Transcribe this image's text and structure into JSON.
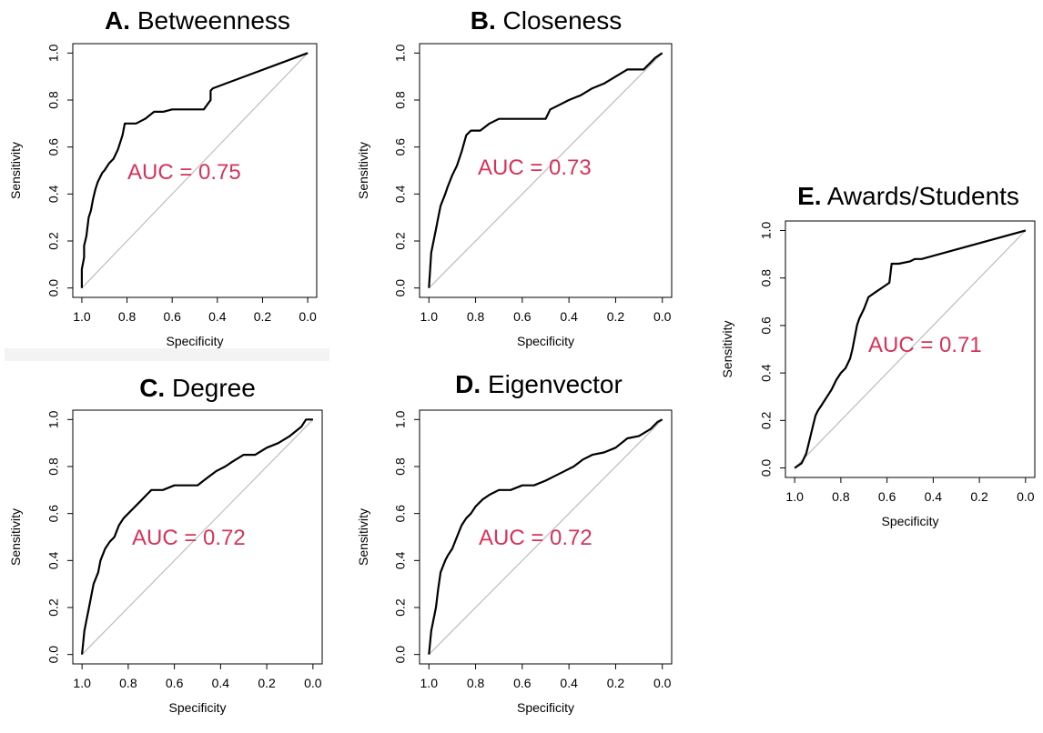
{
  "chart_data": [
    {
      "type": "line",
      "panel_letter": "A.",
      "title": "Betweenness",
      "xlabel": "Specificity",
      "ylabel": "Sensitivity",
      "xlim": [
        1.0,
        0.0
      ],
      "ylim": [
        0.0,
        1.0
      ],
      "x_reversed": true,
      "xticks": [
        "1.0",
        "0.8",
        "0.6",
        "0.4",
        "0.2",
        "0.0"
      ],
      "yticks": [
        "0.0",
        "0.2",
        "0.4",
        "0.6",
        "0.8",
        "1.0"
      ],
      "annotation": "AUC = 0.75",
      "annotation_color": "#d6335a",
      "series": [
        {
          "role": "roc",
          "x": [
            1.0,
            1.0,
            0.99,
            0.99,
            0.98,
            0.97,
            0.96,
            0.95,
            0.94,
            0.93,
            0.91,
            0.9,
            0.88,
            0.86,
            0.84,
            0.82,
            0.81,
            0.79,
            0.76,
            0.72,
            0.68,
            0.64,
            0.6,
            0.55,
            0.5,
            0.46,
            0.43,
            0.43,
            0.42,
            0.0
          ],
          "y": [
            0.0,
            0.08,
            0.13,
            0.18,
            0.22,
            0.3,
            0.33,
            0.38,
            0.42,
            0.45,
            0.49,
            0.5,
            0.53,
            0.55,
            0.59,
            0.65,
            0.7,
            0.7,
            0.7,
            0.72,
            0.75,
            0.75,
            0.76,
            0.76,
            0.76,
            0.76,
            0.8,
            0.84,
            0.85,
            1.0
          ]
        },
        {
          "role": "reference",
          "x": [
            1.0,
            0.0
          ],
          "y": [
            0.0,
            1.0
          ]
        }
      ]
    },
    {
      "type": "line",
      "panel_letter": "B.",
      "title": "Closeness",
      "xlabel": "Specificity",
      "ylabel": "Sensitivity",
      "xlim": [
        1.0,
        0.0
      ],
      "ylim": [
        0.0,
        1.0
      ],
      "x_reversed": true,
      "xticks": [
        "1.0",
        "0.8",
        "0.6",
        "0.4",
        "0.2",
        "0.0"
      ],
      "yticks": [
        "0.0",
        "0.2",
        "0.4",
        "0.6",
        "0.8",
        "1.0"
      ],
      "annotation": "AUC = 0.73",
      "annotation_color": "#d6335a",
      "series": [
        {
          "role": "roc",
          "x": [
            1.0,
            0.99,
            0.98,
            0.97,
            0.96,
            0.95,
            0.93,
            0.92,
            0.9,
            0.88,
            0.86,
            0.84,
            0.82,
            0.78,
            0.74,
            0.7,
            0.65,
            0.6,
            0.55,
            0.5,
            0.48,
            0.44,
            0.4,
            0.35,
            0.3,
            0.25,
            0.2,
            0.15,
            0.08,
            0.05,
            0.03,
            0.0
          ],
          "y": [
            0.0,
            0.15,
            0.2,
            0.25,
            0.3,
            0.35,
            0.4,
            0.43,
            0.48,
            0.52,
            0.58,
            0.65,
            0.67,
            0.67,
            0.7,
            0.72,
            0.72,
            0.72,
            0.72,
            0.72,
            0.76,
            0.78,
            0.8,
            0.82,
            0.85,
            0.87,
            0.9,
            0.93,
            0.93,
            0.96,
            0.98,
            1.0
          ]
        },
        {
          "role": "reference",
          "x": [
            1.0,
            0.0
          ],
          "y": [
            0.0,
            1.0
          ]
        }
      ]
    },
    {
      "type": "line",
      "panel_letter": "C.",
      "title": "Degree",
      "xlabel": "Specificity",
      "ylabel": "Sensitivity",
      "xlim": [
        1.0,
        0.0
      ],
      "ylim": [
        0.0,
        1.0
      ],
      "x_reversed": true,
      "xticks": [
        "1.0",
        "0.8",
        "0.6",
        "0.4",
        "0.2",
        "0.0"
      ],
      "yticks": [
        "0.0",
        "0.2",
        "0.4",
        "0.6",
        "0.8",
        "1.0"
      ],
      "annotation": "AUC = 0.72",
      "annotation_color": "#d6335a",
      "series": [
        {
          "role": "roc",
          "x": [
            1.0,
            0.99,
            0.98,
            0.97,
            0.96,
            0.95,
            0.93,
            0.92,
            0.9,
            0.88,
            0.86,
            0.84,
            0.82,
            0.78,
            0.75,
            0.72,
            0.7,
            0.65,
            0.6,
            0.55,
            0.5,
            0.46,
            0.42,
            0.38,
            0.35,
            0.3,
            0.25,
            0.2,
            0.15,
            0.1,
            0.05,
            0.03,
            0.0
          ],
          "y": [
            0.0,
            0.1,
            0.15,
            0.2,
            0.25,
            0.3,
            0.35,
            0.4,
            0.45,
            0.48,
            0.5,
            0.55,
            0.58,
            0.62,
            0.65,
            0.68,
            0.7,
            0.7,
            0.72,
            0.72,
            0.72,
            0.75,
            0.78,
            0.8,
            0.82,
            0.85,
            0.85,
            0.88,
            0.9,
            0.93,
            0.97,
            1.0,
            1.0
          ]
        },
        {
          "role": "reference",
          "x": [
            1.0,
            0.0
          ],
          "y": [
            0.0,
            1.0
          ]
        }
      ]
    },
    {
      "type": "line",
      "panel_letter": "D.",
      "title": "Eigenvector",
      "xlabel": "Specificity",
      "ylabel": "Sensitivity",
      "xlim": [
        1.0,
        0.0
      ],
      "ylim": [
        0.0,
        1.0
      ],
      "x_reversed": true,
      "xticks": [
        "1.0",
        "0.8",
        "0.6",
        "0.4",
        "0.2",
        "0.0"
      ],
      "yticks": [
        "0.0",
        "0.2",
        "0.4",
        "0.6",
        "0.8",
        "1.0"
      ],
      "annotation": "AUC = 0.72",
      "annotation_color": "#d6335a",
      "series": [
        {
          "role": "roc",
          "x": [
            1.0,
            0.99,
            0.98,
            0.97,
            0.96,
            0.95,
            0.93,
            0.92,
            0.9,
            0.88,
            0.86,
            0.84,
            0.82,
            0.8,
            0.77,
            0.74,
            0.7,
            0.65,
            0.6,
            0.55,
            0.5,
            0.46,
            0.42,
            0.38,
            0.34,
            0.3,
            0.25,
            0.2,
            0.15,
            0.1,
            0.05,
            0.02,
            0.0
          ],
          "y": [
            0.0,
            0.1,
            0.15,
            0.2,
            0.28,
            0.35,
            0.4,
            0.42,
            0.45,
            0.5,
            0.55,
            0.58,
            0.6,
            0.63,
            0.66,
            0.68,
            0.7,
            0.7,
            0.72,
            0.72,
            0.74,
            0.76,
            0.78,
            0.8,
            0.83,
            0.85,
            0.86,
            0.88,
            0.92,
            0.93,
            0.96,
            0.99,
            1.0
          ]
        },
        {
          "role": "reference",
          "x": [
            1.0,
            0.0
          ],
          "y": [
            0.0,
            1.0
          ]
        }
      ]
    },
    {
      "type": "line",
      "panel_letter": "E.",
      "title": "Awards/Students",
      "xlabel": "Specificity",
      "ylabel": "Sensitivity",
      "xlim": [
        1.0,
        0.0
      ],
      "ylim": [
        0.0,
        1.0
      ],
      "x_reversed": true,
      "xticks": [
        "1.0",
        "0.8",
        "0.6",
        "0.4",
        "0.2",
        "0.0"
      ],
      "yticks": [
        "0.0",
        "0.2",
        "0.4",
        "0.6",
        "0.8",
        "1.0"
      ],
      "annotation": "AUC = 0.71",
      "annotation_color": "#d6335a",
      "series": [
        {
          "role": "roc",
          "x": [
            1.0,
            0.97,
            0.95,
            0.94,
            0.93,
            0.92,
            0.91,
            0.9,
            0.88,
            0.86,
            0.84,
            0.82,
            0.8,
            0.78,
            0.76,
            0.75,
            0.74,
            0.73,
            0.72,
            0.7,
            0.68,
            0.65,
            0.62,
            0.59,
            0.58,
            0.55,
            0.5,
            0.48,
            0.45,
            0.0
          ],
          "y": [
            0.0,
            0.02,
            0.06,
            0.1,
            0.14,
            0.18,
            0.22,
            0.24,
            0.27,
            0.3,
            0.33,
            0.37,
            0.4,
            0.42,
            0.46,
            0.5,
            0.55,
            0.6,
            0.63,
            0.67,
            0.72,
            0.74,
            0.76,
            0.78,
            0.86,
            0.86,
            0.87,
            0.88,
            0.88,
            1.0
          ]
        },
        {
          "role": "reference",
          "x": [
            1.0,
            0.0
          ],
          "y": [
            0.0,
            1.0
          ]
        }
      ]
    }
  ]
}
